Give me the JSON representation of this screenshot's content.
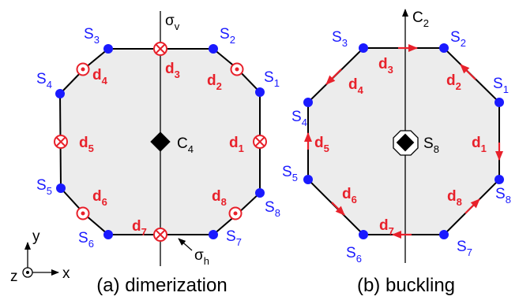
{
  "panels": {
    "a": {
      "caption": "(a) dimerization",
      "sigma_v": {
        "base": "σ",
        "sub": "v"
      },
      "sigma_h": {
        "base": "σ",
        "sub": "h"
      },
      "center": {
        "base": "C",
        "sub": "4"
      },
      "sites": [
        {
          "base": "S",
          "sub": "1"
        },
        {
          "base": "S",
          "sub": "2"
        },
        {
          "base": "S",
          "sub": "3"
        },
        {
          "base": "S",
          "sub": "4"
        },
        {
          "base": "S",
          "sub": "5"
        },
        {
          "base": "S",
          "sub": "6"
        },
        {
          "base": "S",
          "sub": "7"
        },
        {
          "base": "S",
          "sub": "8"
        }
      ],
      "displacements": [
        {
          "base": "d",
          "sub": "1"
        },
        {
          "base": "d",
          "sub": "2"
        },
        {
          "base": "d",
          "sub": "3"
        },
        {
          "base": "d",
          "sub": "4"
        },
        {
          "base": "d",
          "sub": "5"
        },
        {
          "base": "d",
          "sub": "6"
        },
        {
          "base": "d",
          "sub": "7"
        },
        {
          "base": "d",
          "sub": "8"
        }
      ]
    },
    "b": {
      "caption": "(b) buckling",
      "axis": {
        "base": "C",
        "sub": "2"
      },
      "center": {
        "base": "S",
        "sub": "8"
      },
      "sites": [
        {
          "base": "S",
          "sub": "1"
        },
        {
          "base": "S",
          "sub": "2"
        },
        {
          "base": "S",
          "sub": "3"
        },
        {
          "base": "S",
          "sub": "4"
        },
        {
          "base": "S",
          "sub": "5"
        },
        {
          "base": "S",
          "sub": "6"
        },
        {
          "base": "S",
          "sub": "7"
        },
        {
          "base": "S",
          "sub": "8"
        }
      ],
      "displacements": [
        {
          "base": "d",
          "sub": "1"
        },
        {
          "base": "d",
          "sub": "2"
        },
        {
          "base": "d",
          "sub": "3"
        },
        {
          "base": "d",
          "sub": "4"
        },
        {
          "base": "d",
          "sub": "5"
        },
        {
          "base": "d",
          "sub": "6"
        },
        {
          "base": "d",
          "sub": "7"
        },
        {
          "base": "d",
          "sub": "8"
        }
      ]
    }
  },
  "axes": {
    "x": "x",
    "y": "y",
    "z": "z"
  },
  "colors": {
    "site": "#1a1aff",
    "displacement": "#e8212b",
    "fill": "#ececec",
    "outline": "#000000"
  }
}
